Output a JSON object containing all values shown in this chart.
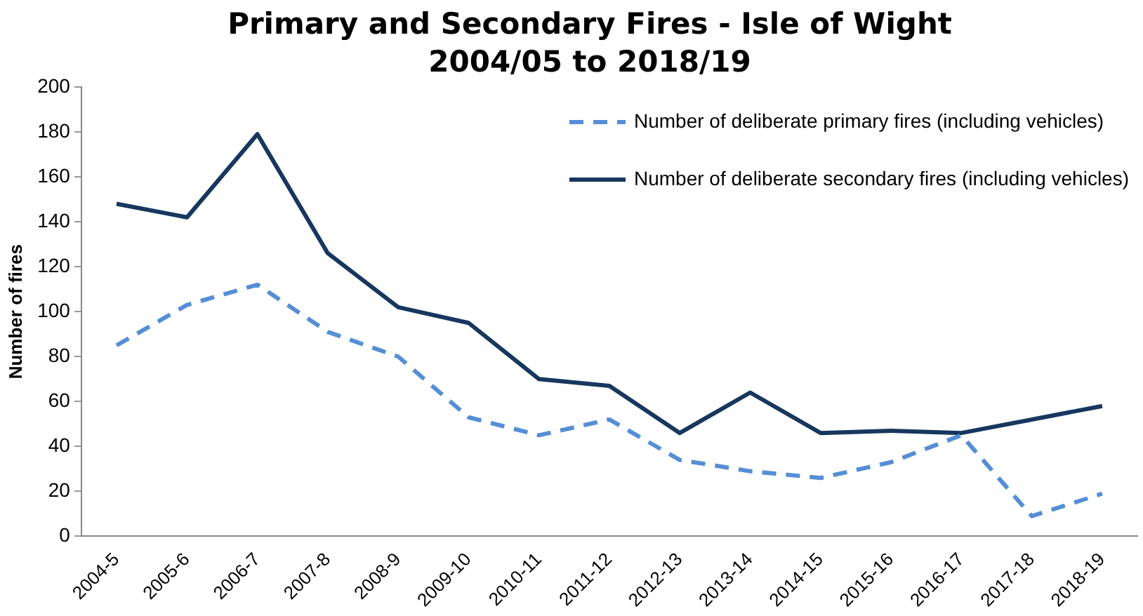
{
  "chart_data": {
    "type": "line",
    "title": "Primary and Secondary Fires - Isle of Wight 2004/05 to 2018/19",
    "ylabel": "Number of fires",
    "categories": [
      "2004-5",
      "2005-6",
      "2006-7",
      "2007-8",
      "2008-9",
      "2009-10",
      "2010-11",
      "2011-12",
      "2012-13",
      "2013-14",
      "2014-15",
      "2015-16",
      "2016-17",
      "2017-18",
      "2018-19"
    ],
    "series": [
      {
        "name": "Number of deliberate primary fires (including vehicles)",
        "color": "#558ed5",
        "line_style": "dashed",
        "values": [
          85,
          103,
          112,
          91,
          80,
          53,
          45,
          52,
          34,
          29,
          26,
          33,
          45,
          9,
          19
        ]
      },
      {
        "name": "Number of deliberate secondary fires (including vehicles)",
        "color": "#17375e",
        "line_style": "solid",
        "values": [
          148,
          142,
          179,
          126,
          102,
          95,
          70,
          67,
          46,
          64,
          46,
          47,
          46,
          52,
          58
        ]
      }
    ],
    "ylim": [
      0,
      200
    ],
    "yticks": [
      0,
      20,
      40,
      60,
      80,
      100,
      120,
      140,
      160,
      180,
      200
    ],
    "grid": false,
    "legend": "top right",
    "marker": "none"
  }
}
